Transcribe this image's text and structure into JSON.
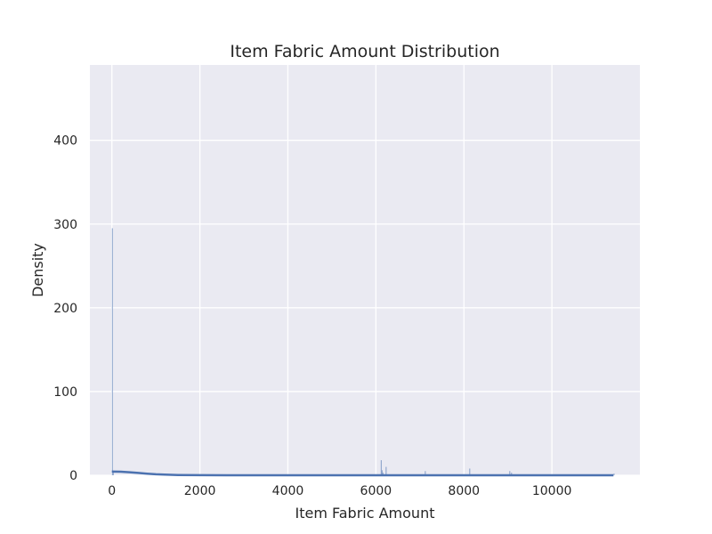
{
  "chart_data": {
    "type": "bar",
    "title": "Item Fabric Amount Distribution",
    "xlabel": "Item Fabric Amount",
    "ylabel": "Density",
    "xlim": [
      -500,
      12000
    ],
    "ylim": [
      0,
      490
    ],
    "x_ticks": [
      0,
      2000,
      4000,
      6000,
      8000,
      10000
    ],
    "y_ticks": [
      0,
      100,
      200,
      300,
      400
    ],
    "grid": true,
    "background": "#eaeaf2",
    "series_color": "#4c72b0",
    "histogram": [
      {
        "x": 0,
        "density": 295
      },
      {
        "x": 20,
        "density": 4
      },
      {
        "x": 6110,
        "density": 18
      },
      {
        "x": 6130,
        "density": 6
      },
      {
        "x": 6150,
        "density": 3
      },
      {
        "x": 6220,
        "density": 10
      },
      {
        "x": 7110,
        "density": 5
      },
      {
        "x": 8120,
        "density": 8
      },
      {
        "x": 9030,
        "density": 5
      },
      {
        "x": 9070,
        "density": 3
      },
      {
        "x": 11400,
        "density": 2
      }
    ],
    "kde": {
      "x": [
        0,
        200,
        400,
        600,
        800,
        1000,
        1200,
        1500,
        2000,
        3000,
        4000,
        5000,
        6000,
        7000,
        8000,
        9000,
        10000,
        11400
      ],
      "y": [
        4.5,
        4.3,
        3.6,
        2.8,
        1.9,
        1.2,
        0.7,
        0.3,
        0.1,
        0.05,
        0.05,
        0.05,
        0.05,
        0.05,
        0.05,
        0.05,
        0.05,
        0.05
      ]
    }
  }
}
